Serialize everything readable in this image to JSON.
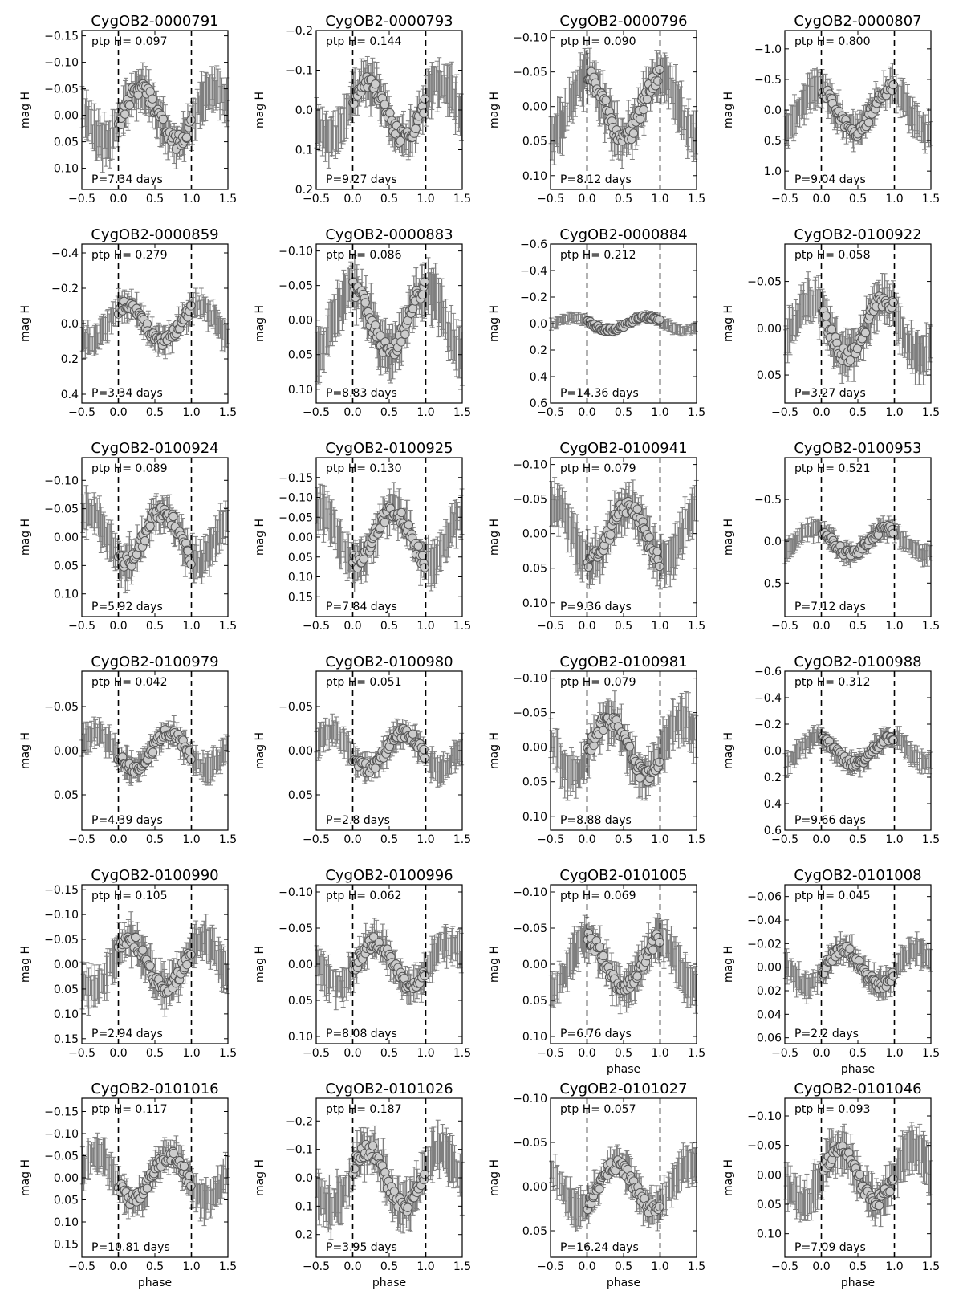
{
  "figure": {
    "xticks": [
      "−0.5",
      "0.0",
      "0.5",
      "1.0",
      "1.5"
    ],
    "ylabel": "mag H",
    "xlabel": "phase",
    "ptp_prefix": "ptp H=",
    "colors": {
      "errorbar": "#7f7f7f",
      "marker_fill": "#cccccc",
      "marker_edge": "#555555",
      "frame": "#000000"
    }
  },
  "chart_data": [
    {
      "type": "scatter",
      "title": "CygOB2-0000791",
      "ptp": "0.097",
      "period": "P=7.34 days",
      "ylim": [
        -0.16,
        0.14
      ],
      "yticks": [
        "−0.15",
        "−0.10",
        "−0.05",
        "0.00",
        "0.05",
        "0.10"
      ],
      "ytick_values": [
        -0.15,
        -0.1,
        -0.05,
        0.0,
        0.05,
        0.1
      ],
      "amp": 0.05,
      "peak": 0.3,
      "center": 0.0,
      "invert_y": true,
      "show_xlabel": false
    },
    {
      "type": "scatter",
      "title": "CygOB2-0000793",
      "ptp": "0.144",
      "period": "P=9.27 days",
      "ylim": [
        -0.2,
        0.2
      ],
      "yticks": [
        "−0.2",
        "−0.1",
        "0.0",
        "0.1",
        "0.2"
      ],
      "ytick_values": [
        -0.2,
        -0.1,
        0.0,
        0.1,
        0.2
      ],
      "amp": 0.07,
      "peak": 0.2,
      "center": 0.0,
      "invert_y": true,
      "show_xlabel": false
    },
    {
      "type": "scatter",
      "title": "CygOB2-0000796",
      "ptp": "0.090",
      "period": "P=8.12 days",
      "ylim": [
        -0.11,
        0.12
      ],
      "yticks": [
        "−0.10",
        "−0.05",
        "0.00",
        "0.05",
        "0.10"
      ],
      "ytick_values": [
        -0.1,
        -0.05,
        0.0,
        0.05,
        0.1
      ],
      "amp": 0.045,
      "peak": 0.0,
      "center": 0.0,
      "invert_y": true,
      "show_xlabel": false
    },
    {
      "type": "scatter",
      "title": "CygOB2-0000807",
      "ptp": "0.800",
      "period": "P=9.04 days",
      "ylim": [
        -1.3,
        1.3
      ],
      "yticks": [
        "−1.0",
        "−0.5",
        "0.0",
        "0.5",
        "1.0"
      ],
      "ytick_values": [
        -1.0,
        -0.5,
        0.0,
        0.5,
        1.0
      ],
      "amp": 0.35,
      "peak": 0.95,
      "center": 0.0,
      "invert_y": true,
      "show_xlabel": false
    },
    {
      "type": "scatter",
      "title": "CygOB2-0000859",
      "ptp": "0.279",
      "period": "P=3.34 days",
      "ylim": [
        -0.45,
        0.45
      ],
      "yticks": [
        "−0.4",
        "−0.2",
        "0.0",
        "0.2",
        "0.4"
      ],
      "ytick_values": [
        -0.4,
        -0.2,
        0.0,
        0.2,
        0.4
      ],
      "amp": 0.1,
      "peak": 0.1,
      "center": 0.0,
      "invert_y": true,
      "show_xlabel": false
    },
    {
      "type": "scatter",
      "title": "CygOB2-0000883",
      "ptp": "0.086",
      "period": "P=8.83 days",
      "ylim": [
        -0.11,
        0.12
      ],
      "yticks": [
        "−0.10",
        "−0.05",
        "0.00",
        "0.05",
        "0.10"
      ],
      "ytick_values": [
        -0.1,
        -0.05,
        0.0,
        0.05,
        0.1
      ],
      "amp": 0.045,
      "peak": 0.0,
      "center": 0.0,
      "invert_y": true,
      "show_xlabel": false
    },
    {
      "type": "scatter",
      "title": "CygOB2-0000884",
      "ptp": "0.212",
      "period": "P=14.36 days",
      "ylim": [
        -0.6,
        0.6
      ],
      "yticks": [
        "−0.6",
        "−0.4",
        "−0.2",
        "0.0",
        "0.2",
        "0.4",
        "0.6"
      ],
      "ytick_values": [
        -0.6,
        -0.4,
        -0.2,
        0.0,
        0.2,
        0.4,
        0.6
      ],
      "amp": 0.05,
      "peak": 0.8,
      "center": 0.0,
      "invert_y": true,
      "show_xlabel": false
    },
    {
      "type": "scatter",
      "title": "CygOB2-0100922",
      "ptp": "0.058",
      "period": "P=3.27 days",
      "ylim": [
        -0.09,
        0.08
      ],
      "yticks": [
        "−0.05",
        "0.00",
        "0.05"
      ],
      "ytick_values": [
        -0.05,
        0.0,
        0.05
      ],
      "amp": 0.03,
      "peak": 0.85,
      "center": 0.0,
      "invert_y": true,
      "show_xlabel": false
    },
    {
      "type": "scatter",
      "title": "CygOB2-0100924",
      "ptp": "0.089",
      "period": "P=5.92 days",
      "ylim": [
        -0.14,
        0.14
      ],
      "yticks": [
        "−0.10",
        "−0.05",
        "0.00",
        "0.05",
        "0.10"
      ],
      "ytick_values": [
        -0.1,
        -0.05,
        0.0,
        0.05,
        0.1
      ],
      "amp": 0.045,
      "peak": 0.6,
      "center": 0.0,
      "invert_y": true,
      "show_xlabel": false
    },
    {
      "type": "scatter",
      "title": "CygOB2-0100925",
      "ptp": "0.130",
      "period": "P=7.84 days",
      "ylim": [
        -0.2,
        0.2
      ],
      "yticks": [
        "−0.15",
        "−0.10",
        "−0.05",
        "0.00",
        "0.05",
        "0.10",
        "0.15"
      ],
      "ytick_values": [
        -0.15,
        -0.1,
        -0.05,
        0.0,
        0.05,
        0.1,
        0.15
      ],
      "amp": 0.065,
      "peak": 0.55,
      "center": 0.0,
      "invert_y": true,
      "show_xlabel": false
    },
    {
      "type": "scatter",
      "title": "CygOB2-0100941",
      "ptp": "0.079",
      "period": "P=9.36 days",
      "ylim": [
        -0.11,
        0.12
      ],
      "yticks": [
        "−0.10",
        "−0.05",
        "0.00",
        "0.05",
        "0.10"
      ],
      "ytick_values": [
        -0.1,
        -0.05,
        0.0,
        0.05,
        0.1
      ],
      "amp": 0.04,
      "peak": 0.55,
      "center": 0.0,
      "invert_y": true,
      "show_xlabel": false
    },
    {
      "type": "scatter",
      "title": "CygOB2-0100953",
      "ptp": "0.521",
      "period": "P=7.12 days",
      "ylim": [
        -1.0,
        0.9
      ],
      "yticks": [
        "−0.5",
        "0.0",
        "0.5"
      ],
      "ytick_values": [
        -0.5,
        0.0,
        0.5
      ],
      "amp": 0.15,
      "peak": 0.9,
      "center": 0.0,
      "invert_y": true,
      "show_xlabel": false
    },
    {
      "type": "scatter",
      "title": "CygOB2-0100979",
      "ptp": "0.042",
      "period": "P=4.39 days",
      "ylim": [
        -0.09,
        0.09
      ],
      "yticks": [
        "−0.05",
        "0.00",
        "0.05"
      ],
      "ytick_values": [
        -0.05,
        0.0,
        0.05
      ],
      "amp": 0.02,
      "peak": 0.7,
      "center": 0.0,
      "invert_y": true,
      "show_xlabel": false
    },
    {
      "type": "scatter",
      "title": "CygOB2-0100980",
      "ptp": "0.051",
      "period": "P=2.8 days",
      "ylim": [
        -0.09,
        0.09
      ],
      "yticks": [
        "−0.05",
        "0.00",
        "0.05"
      ],
      "ytick_values": [
        -0.05,
        0.0,
        0.05
      ],
      "amp": 0.02,
      "peak": 0.7,
      "center": 0.0,
      "invert_y": true,
      "show_xlabel": false
    },
    {
      "type": "scatter",
      "title": "CygOB2-0100981",
      "ptp": "0.079",
      "period": "P=8.88 days",
      "ylim": [
        -0.11,
        0.12
      ],
      "yticks": [
        "−0.10",
        "−0.05",
        "0.00",
        "0.05",
        "0.10"
      ],
      "ytick_values": [
        -0.1,
        -0.05,
        0.0,
        0.05,
        0.1
      ],
      "amp": 0.04,
      "peak": 0.3,
      "center": 0.0,
      "invert_y": true,
      "show_xlabel": false
    },
    {
      "type": "scatter",
      "title": "CygOB2-0100988",
      "ptp": "0.312",
      "period": "P=9.66 days",
      "ylim": [
        -0.6,
        0.6
      ],
      "yticks": [
        "−0.6",
        "−0.4",
        "−0.2",
        "0.0",
        "0.2",
        "0.4",
        "0.6"
      ],
      "ytick_values": [
        -0.6,
        -0.4,
        -0.2,
        0.0,
        0.2,
        0.4,
        0.6
      ],
      "amp": 0.1,
      "peak": 0.95,
      "center": 0.0,
      "invert_y": true,
      "show_xlabel": false
    },
    {
      "type": "scatter",
      "title": "CygOB2-0100990",
      "ptp": "0.105",
      "period": "P=2.94 days",
      "ylim": [
        -0.16,
        0.16
      ],
      "yticks": [
        "−0.15",
        "−0.10",
        "−0.05",
        "0.00",
        "0.05",
        "0.10",
        "0.15"
      ],
      "ytick_values": [
        -0.15,
        -0.1,
        -0.05,
        0.0,
        0.05,
        0.1,
        0.15
      ],
      "amp": 0.05,
      "peak": 0.15,
      "center": 0.0,
      "invert_y": true,
      "show_xlabel": false
    },
    {
      "type": "scatter",
      "title": "CygOB2-0100996",
      "ptp": "0.062",
      "period": "P=8.08 days",
      "ylim": [
        -0.11,
        0.11
      ],
      "yticks": [
        "−0.10",
        "−0.05",
        "0.00",
        "0.05",
        "0.10"
      ],
      "ytick_values": [
        -0.1,
        -0.05,
        0.0,
        0.05,
        0.1
      ],
      "amp": 0.03,
      "peak": 0.3,
      "center": 0.0,
      "invert_y": true,
      "show_xlabel": false
    },
    {
      "type": "scatter",
      "title": "CygOB2-0101005",
      "ptp": "0.069",
      "period": "P=6.76 days",
      "ylim": [
        -0.11,
        0.11
      ],
      "yticks": [
        "−0.10",
        "−0.05",
        "0.00",
        "0.05",
        "0.10"
      ],
      "ytick_values": [
        -0.1,
        -0.05,
        0.0,
        0.05,
        0.1
      ],
      "amp": 0.035,
      "peak": 0.0,
      "center": 0.0,
      "invert_y": true,
      "show_xlabel": true
    },
    {
      "type": "scatter",
      "title": "CygOB2-0101008",
      "ptp": "0.045",
      "period": "P=2.2 days",
      "ylim": [
        -0.07,
        0.065
      ],
      "yticks": [
        "−0.06",
        "−0.04",
        "−0.02",
        "0.00",
        "0.02",
        "0.04",
        "0.06"
      ],
      "ytick_values": [
        -0.06,
        -0.04,
        -0.02,
        0.0,
        0.02,
        0.04,
        0.06
      ],
      "amp": 0.015,
      "peak": 0.3,
      "center": 0.0,
      "invert_y": true,
      "show_xlabel": true
    },
    {
      "type": "scatter",
      "title": "CygOB2-0101016",
      "ptp": "0.117",
      "period": "P=10.81 days",
      "ylim": [
        -0.18,
        0.18
      ],
      "yticks": [
        "−0.15",
        "−0.10",
        "−0.05",
        "0.00",
        "0.05",
        "0.10",
        "0.15"
      ],
      "ytick_values": [
        -0.15,
        -0.1,
        -0.05,
        0.0,
        0.05,
        0.1,
        0.15
      ],
      "amp": 0.05,
      "peak": 0.7,
      "center": 0.0,
      "invert_y": true,
      "show_xlabel": true
    },
    {
      "type": "scatter",
      "title": "CygOB2-0101026",
      "ptp": "0.187",
      "period": "P=3.95 days",
      "ylim": [
        -0.28,
        0.28
      ],
      "yticks": [
        "−0.2",
        "−0.1",
        "0.0",
        "0.1",
        "0.2"
      ],
      "ytick_values": [
        -0.2,
        -0.1,
        0.0,
        0.1,
        0.2
      ],
      "amp": 0.1,
      "peak": 0.2,
      "center": 0.0,
      "invert_y": true,
      "show_xlabel": true
    },
    {
      "type": "scatter",
      "title": "CygOB2-0101027",
      "ptp": "0.057",
      "period": "P=16.24 days",
      "ylim": [
        -0.1,
        0.08
      ],
      "yticks": [
        "−0.10",
        "−0.05",
        "0.00",
        "0.05"
      ],
      "ytick_values": [
        -0.1,
        -0.05,
        0.0,
        0.05
      ],
      "amp": 0.025,
      "peak": 0.4,
      "center": 0.0,
      "invert_y": true,
      "show_xlabel": true
    },
    {
      "type": "scatter",
      "title": "CygOB2-0101046",
      "ptp": "0.093",
      "period": "P=7.09 days",
      "ylim": [
        -0.13,
        0.14
      ],
      "yticks": [
        "−0.10",
        "−0.05",
        "0.00",
        "0.05",
        "0.10"
      ],
      "ytick_values": [
        -0.1,
        -0.05,
        0.0,
        0.05,
        0.1
      ],
      "amp": 0.045,
      "peak": 0.25,
      "center": 0.0,
      "invert_y": true,
      "show_xlabel": true
    }
  ]
}
